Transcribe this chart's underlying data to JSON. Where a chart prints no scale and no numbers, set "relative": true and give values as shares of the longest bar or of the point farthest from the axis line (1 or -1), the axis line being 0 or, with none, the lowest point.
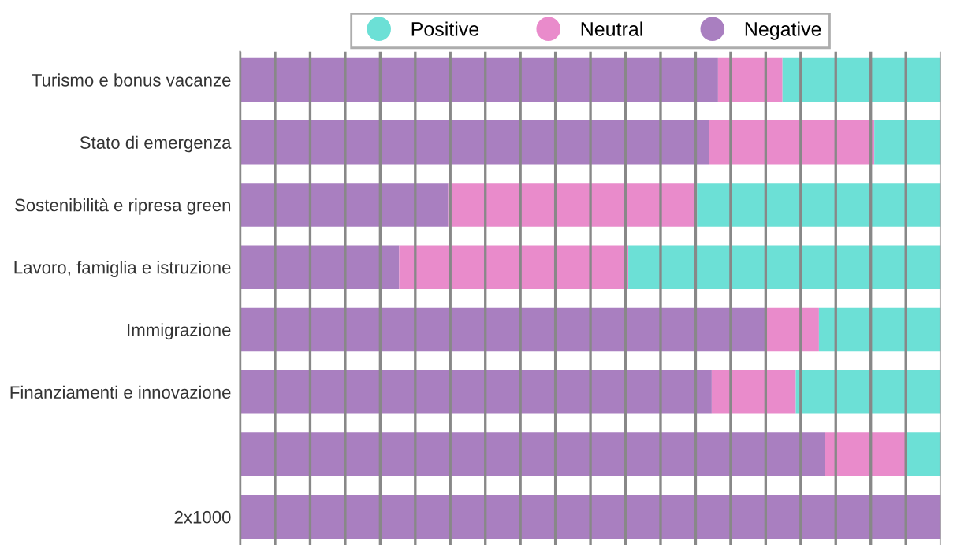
{
  "chart_data": {
    "type": "bar",
    "orientation": "horizontal",
    "stacked": true,
    "relative": true,
    "categories": [
      "Turismo e bonus vacanze",
      "Stato di emergenza",
      "Sostenibilità e ripresa green",
      "Lavoro, famiglia e istruzione",
      "Immigrazione",
      "Finanziamenti e innovazione",
      null,
      "2x1000"
    ],
    "series": [
      {
        "name": "Negative",
        "color": "#a97fc0",
        "values": [
          0.682,
          0.669,
          0.297,
          0.227,
          0.751,
          0.673,
          0.835,
          1.0
        ]
      },
      {
        "name": "Neutral",
        "color": "#e98bcb",
        "values": [
          0.092,
          0.236,
          0.355,
          0.327,
          0.075,
          0.12,
          0.117,
          0
        ]
      },
      {
        "name": "Positive",
        "color": "#6ce0d6",
        "values": [
          0.226,
          0.095,
          0.348,
          0.446,
          0.174,
          0.207,
          0.048,
          0
        ]
      }
    ],
    "grid": "x",
    "legend": "top",
    "marker": "circle"
  }
}
